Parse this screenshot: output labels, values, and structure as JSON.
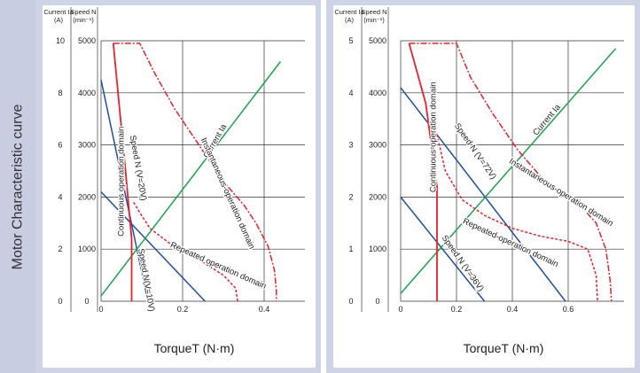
{
  "side_title": "Motor Characteristic curve",
  "colors": {
    "speed_line": "#1f4fa0",
    "current_line": "#1aa34a",
    "domain_curves": "#e8212a",
    "panel_bg": "#cfd3e6",
    "side_band": "#c8cde2"
  },
  "chart_data": [
    {
      "type": "line",
      "title": "",
      "xlabel": "TorqueT (N·m)",
      "left_axis": {
        "label": "Current Ia (A)",
        "label_lines": [
          "Current Ia",
          "(A)"
        ],
        "ticks": [
          "0",
          "2",
          "4",
          "6",
          "8",
          "10"
        ],
        "range": [
          0,
          10
        ]
      },
      "right_axis": {
        "label": "Speed N (min⁻¹)",
        "label_lines": [
          "Speed N",
          "(min⁻¹)"
        ],
        "ticks": [
          "0",
          "1000",
          "2000",
          "3000",
          "4000",
          "5000"
        ],
        "range": [
          0,
          5000
        ]
      },
      "x_ticks": [
        "0",
        "0.2",
        "0.4"
      ],
      "xlim": [
        0,
        0.5
      ],
      "grid": true,
      "series": [
        {
          "name": "Speed N (V=20V)",
          "kind": "speed",
          "x": [
            0,
            0.115
          ],
          "y": [
            4250,
            0
          ]
        },
        {
          "name": "Speed N (V=10V)",
          "kind": "speed",
          "x": [
            0,
            0.255
          ],
          "y": [
            2100,
            0
          ]
        },
        {
          "name": "Current Ia",
          "kind": "current",
          "x": [
            0,
            0.44
          ],
          "y": [
            0.2,
            9.2
          ]
        },
        {
          "name": "Instantaneous-operation domain",
          "kind": "instant",
          "x": [
            0.03,
            0.095,
            0.13,
            0.18,
            0.24,
            0.3,
            0.35,
            0.38,
            0.41,
            0.425,
            0.43,
            0.43
          ],
          "y": [
            4950,
            4950,
            4400,
            3700,
            3000,
            2300,
            1850,
            1500,
            1050,
            600,
            200,
            0
          ]
        },
        {
          "name": "Repeated operation domain",
          "kind": "repeated",
          "x": [
            0.08,
            0.095,
            0.12,
            0.17,
            0.24,
            0.3,
            0.33,
            0.335
          ],
          "y": [
            1900,
            1700,
            1400,
            1100,
            800,
            500,
            250,
            0
          ]
        },
        {
          "name": "Continuous operation domain",
          "kind": "continuous",
          "x": [
            0.03,
            0.06,
            0.075,
            0.075
          ],
          "y": [
            4950,
            2500,
            1200,
            0
          ]
        }
      ],
      "annotations": [
        {
          "text": "Speed N (V=20V)",
          "x": 0.085,
          "y": 2550,
          "angle": 80
        },
        {
          "text": "Speed N(V=10V)",
          "x": 0.105,
          "y": 400,
          "angle": 80
        },
        {
          "text": "Current Ia",
          "x": 0.285,
          "y": 3050,
          "angle": -60
        },
        {
          "text": "Instantaneous-operation domain",
          "x": 0.305,
          "y": 2050,
          "angle": 66
        },
        {
          "text": "Repeated operation domain",
          "x": 0.285,
          "y": 640,
          "angle": 24
        },
        {
          "text": "Continuous operation domain",
          "x": 0.055,
          "y": 2300,
          "angle": -90
        }
      ]
    },
    {
      "type": "line",
      "title": "",
      "xlabel": "TorqueT (N·m)",
      "left_axis": {
        "label": "Current Ia (A)",
        "label_lines": [
          "Current Ia",
          "(A)"
        ],
        "ticks": [
          "0",
          "1",
          "2",
          "3",
          "4",
          "5"
        ],
        "range": [
          0,
          5
        ]
      },
      "right_axis": {
        "label": "Speed N (min⁻¹)",
        "label_lines": [
          "Speed N",
          "(min⁻¹)"
        ],
        "ticks": [
          "0",
          "1000",
          "2000",
          "3000",
          "4000",
          "5000"
        ],
        "range": [
          0,
          5000
        ]
      },
      "x_ticks": [
        "0",
        "0.2",
        "0.4",
        "0.6"
      ],
      "xlim": [
        0,
        0.8
      ],
      "grid": true,
      "series": [
        {
          "name": "Speed N (V=72V)",
          "kind": "speed",
          "x": [
            0,
            0.59
          ],
          "y": [
            4100,
            0
          ]
        },
        {
          "name": "Speed N (V=36V)",
          "kind": "speed",
          "x": [
            0,
            0.3
          ],
          "y": [
            2000,
            0
          ]
        },
        {
          "name": "Current Ia",
          "kind": "current",
          "x": [
            0,
            0.77
          ],
          "y": [
            0.15,
            4.85
          ]
        },
        {
          "name": "Instantaneous-operation domain",
          "kind": "instant",
          "x": [
            0.03,
            0.2,
            0.25,
            0.33,
            0.42,
            0.5,
            0.58,
            0.65,
            0.7,
            0.735,
            0.75,
            0.755
          ],
          "y": [
            4950,
            4950,
            4300,
            3600,
            2900,
            2400,
            2050,
            1800,
            1500,
            1000,
            400,
            0
          ]
        },
        {
          "name": "Repeated-operation domain",
          "kind": "repeated",
          "x": [
            0.13,
            0.16,
            0.22,
            0.3,
            0.4,
            0.5,
            0.6,
            0.67,
            0.7,
            0.705
          ],
          "y": [
            3200,
            2500,
            1950,
            1650,
            1400,
            1250,
            1150,
            1000,
            500,
            0
          ]
        },
        {
          "name": "Continuous-operation domain",
          "kind": "continuous",
          "x": [
            0.03,
            0.09,
            0.13,
            0.13
          ],
          "y": [
            4950,
            3800,
            2200,
            0
          ]
        }
      ],
      "annotations": [
        {
          "text": "Speed N (V=72V)",
          "x": 0.26,
          "y": 2850,
          "angle": 55
        },
        {
          "text": "Speed N (V=36V)",
          "x": 0.215,
          "y": 700,
          "angle": 55
        },
        {
          "text": "Current Ia",
          "x": 0.53,
          "y": 3450,
          "angle": -50
        },
        {
          "text": "Instantaneous-operation domain",
          "x": 0.57,
          "y": 2050,
          "angle": 32
        },
        {
          "text": "Repeated-operation domain",
          "x": 0.39,
          "y": 1080,
          "angle": 25
        },
        {
          "text": "Continuous-operation domain",
          "x": 0.125,
          "y": 3150,
          "angle": -90
        }
      ]
    }
  ]
}
